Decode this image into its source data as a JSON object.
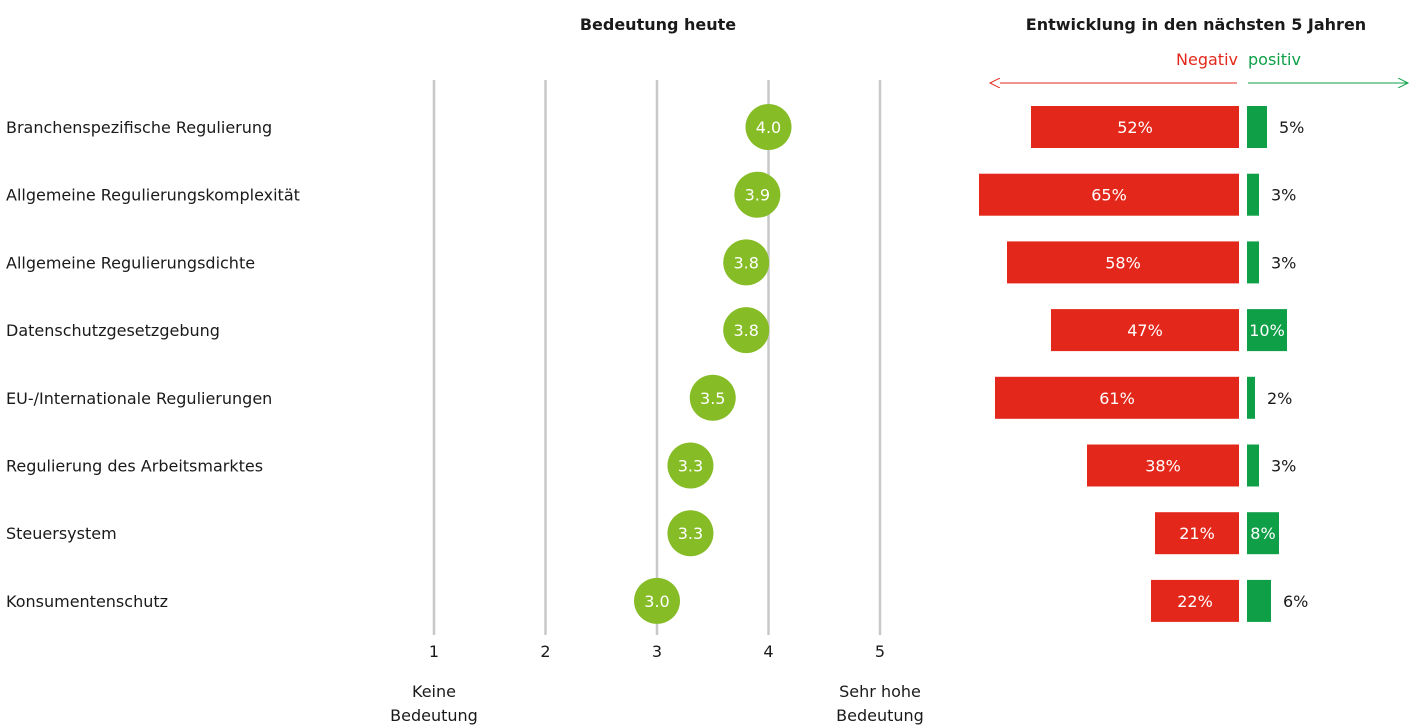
{
  "colors": {
    "dot": "#86BC25",
    "negative": "#E3281B",
    "positive": "#0E9F47",
    "grid": "#c8c8c8",
    "text": "#1a1a1a"
  },
  "chart_data": [
    {
      "type": "scatter",
      "title": "Bedeutung heute",
      "categories": [
        "Branchenspezifische Regulierung",
        "Allgemeine Regulierungskomplexität",
        "Allgemeine Regulierungsdichte",
        "Datenschutzgesetzgebung",
        "EU-/Internationale Regulierungen",
        "Regulierung des Arbeitsmarktes",
        "Steuersystem",
        "Konsumentenschutz"
      ],
      "values": [
        4.0,
        3.9,
        3.8,
        3.8,
        3.5,
        3.3,
        3.3,
        3.0
      ],
      "value_labels": [
        "4.0",
        "3.9",
        "3.8",
        "3.8",
        "3.5",
        "3.3",
        "3.3",
        "3.0"
      ],
      "xticks": [
        "1",
        "2",
        "3",
        "4",
        "5"
      ],
      "xlim": [
        1,
        5
      ],
      "grid": true,
      "xaxis_low_label": [
        "Keine",
        "Bedeutung"
      ],
      "xaxis_high_label": [
        "Sehr hohe",
        "Bedeutung"
      ]
    },
    {
      "type": "bar",
      "title": "Entwicklung in den nächsten 5 Jahren",
      "negative_label": "Negativ",
      "positive_label": "positiv",
      "categories": [
        "Branchenspezifische Regulierung",
        "Allgemeine Regulierungskomplexität",
        "Allgemeine Regulierungsdichte",
        "Datenschutzgesetzgebung",
        "EU-/Internationale Regulierungen",
        "Regulierung des Arbeitsmarktes",
        "Steuersystem",
        "Konsumentenschutz"
      ],
      "series": [
        {
          "name": "Negativ",
          "values": [
            52,
            65,
            58,
            47,
            61,
            38,
            21,
            22
          ],
          "labels": [
            "52%",
            "65%",
            "58%",
            "47%",
            "61%",
            "38%",
            "21%",
            "22%"
          ]
        },
        {
          "name": "positiv",
          "values": [
            5,
            3,
            3,
            10,
            2,
            3,
            8,
            6
          ],
          "labels": [
            "5%",
            "3%",
            "3%",
            "10%",
            "2%",
            "3%",
            "8%",
            "6%"
          ]
        }
      ]
    }
  ]
}
